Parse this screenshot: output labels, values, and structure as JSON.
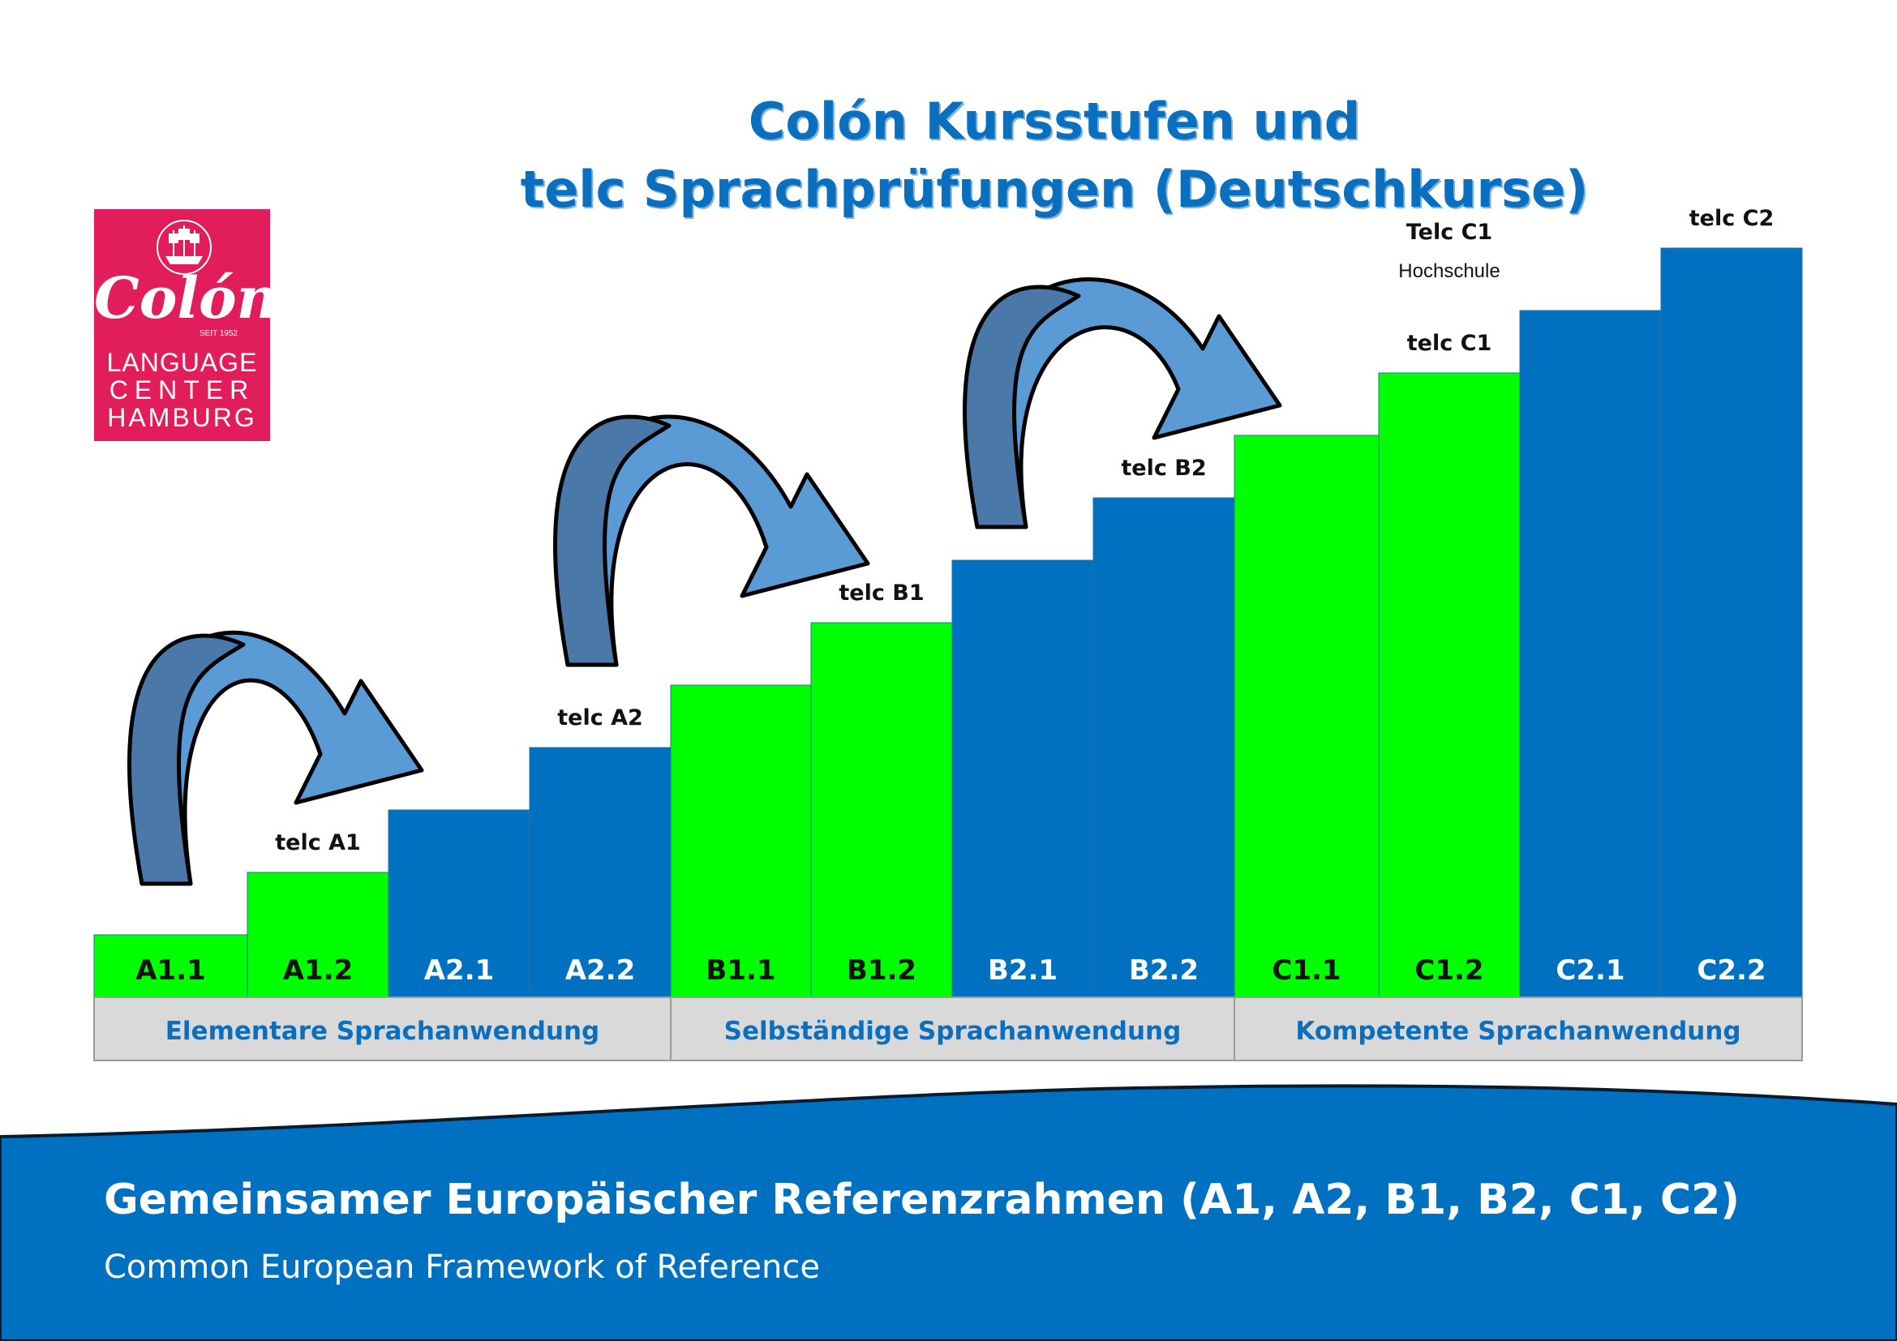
{
  "title": {
    "line1": "Colón Kursstufen und",
    "line2": "telc Sprachprüfungen (Deutschkurse)"
  },
  "logo": {
    "brand": "Colón",
    "since": "SEIT 1952",
    "line1": "LANGUAGE",
    "line2": "CENTER",
    "line3": "HAMBURG",
    "icon": "ship-icon"
  },
  "colors": {
    "green": "#00ff00",
    "blue": "#0070c0",
    "band": "#d9d9d9",
    "title_blue": "#0b6fbf",
    "arrow": "#5b9bd5"
  },
  "levels": [
    {
      "label": "A1.1",
      "color": "green",
      "step": 1
    },
    {
      "label": "A1.2",
      "color": "green",
      "step": 2
    },
    {
      "label": "A2.1",
      "color": "blue",
      "step": 3
    },
    {
      "label": "A2.2",
      "color": "blue",
      "step": 4
    },
    {
      "label": "B1.1",
      "color": "green",
      "step": 5
    },
    {
      "label": "B1.2",
      "color": "green",
      "step": 6
    },
    {
      "label": "B2.1",
      "color": "blue",
      "step": 7
    },
    {
      "label": "B2.2",
      "color": "blue",
      "step": 8
    },
    {
      "label": "C1.1",
      "color": "green",
      "step": 9
    },
    {
      "label": "C1.2",
      "color": "green",
      "step": 10
    },
    {
      "label": "C2.1",
      "color": "blue",
      "step": 11
    },
    {
      "label": "C2.2",
      "color": "blue",
      "step": 12
    }
  ],
  "exams": [
    {
      "level": "A1.2",
      "label": "telc A1"
    },
    {
      "level": "A2.2",
      "label": "telc A2"
    },
    {
      "level": "B1.2",
      "label": "telc B1"
    },
    {
      "level": "B2.2",
      "label": "telc B2"
    },
    {
      "level": "C1.2",
      "label": "telc C1"
    },
    {
      "level": "C1.2",
      "label": "Telc C1",
      "sub": "Hochschule"
    },
    {
      "level": "C2.2",
      "label": "telc C2"
    }
  ],
  "bands": [
    {
      "label": "Elementare Sprachanwendung",
      "from": "A1.1",
      "to": "A2.2"
    },
    {
      "label": "Selbständige Sprachanwendung",
      "from": "B1.1",
      "to": "B2.2"
    },
    {
      "label": "Kompetente Sprachanwendung",
      "from": "C1.1",
      "to": "C2.2"
    }
  ],
  "footer": {
    "title": "Gemeinsamer Europäischer Referenzrahmen (A1, A2, B1, B2, C1, C2)",
    "subtitle": "Common European Framework of Reference"
  }
}
